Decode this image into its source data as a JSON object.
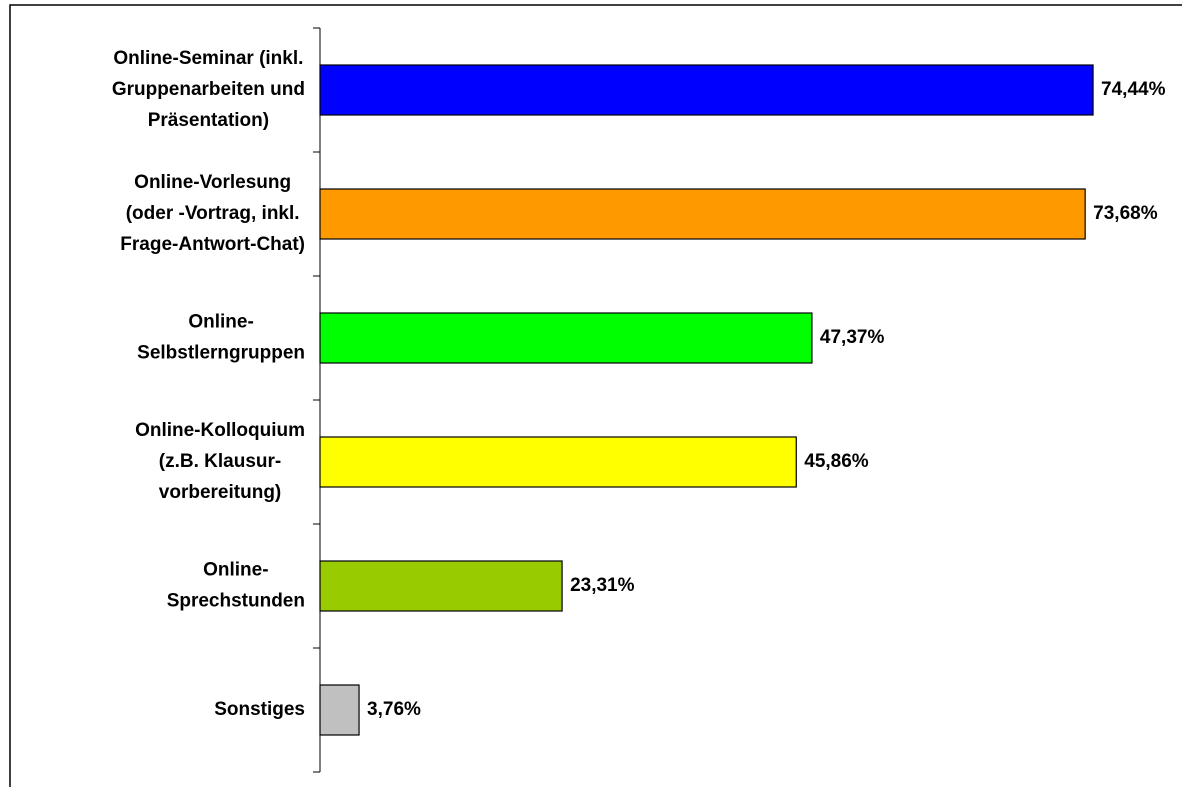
{
  "chart_data": {
    "type": "bar",
    "orientation": "horizontal",
    "categories": [
      [
        "Online-Seminar (inkl.",
        "Gruppenarbeiten und",
        "Präsentation)"
      ],
      [
        "Online-Vorlesung",
        "(oder -Vortrag, inkl.",
        "Frage-Antwort-Chat)"
      ],
      [
        "Online-",
        "Selbstlerngruppen"
      ],
      [
        "Online-Kolloquium",
        "(z.B. Klausur-",
        "vorbereitung)"
      ],
      [
        "Online-",
        "Sprechstunden"
      ],
      [
        "Sonstiges"
      ]
    ],
    "values": [
      74.44,
      73.68,
      47.37,
      45.86,
      23.31,
      3.76
    ],
    "value_labels": [
      "74,44%",
      "73,68%",
      "47,37%",
      "45,86%",
      "23,31%",
      "3,76%"
    ],
    "colors": [
      "#0000ff",
      "#ff9900",
      "#00ff00",
      "#ffff00",
      "#99cc00",
      "#c0c0c0"
    ]
  }
}
